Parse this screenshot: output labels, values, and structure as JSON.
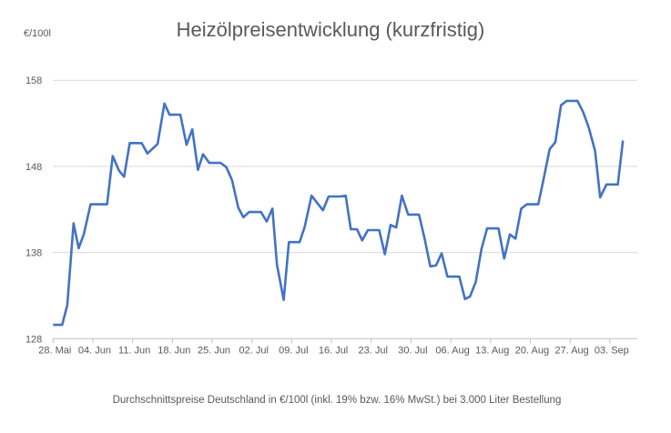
{
  "chart_data": {
    "type": "line",
    "title": "Heizölpreisentwicklung (kurzfristig)",
    "ylabel": "€/100l",
    "xlabel": "Durchschnittspreise Deutschland in €/100l (inkl. 19% bzw. 16%  MwSt.) bei 3.000 Liter Bestellung",
    "ylim": [
      128,
      158
    ],
    "yticks": [
      "128",
      "138",
      "148",
      "158"
    ],
    "ytick_values": [
      128,
      138,
      148,
      158
    ],
    "x_unit": "days since 28. Mai",
    "xlim": [
      0,
      98
    ],
    "xticks": [
      "28. Mai",
      "04. Jun",
      "11. Jun",
      "18. Jun",
      "25. Jun",
      "02. Jul",
      "09. Jul",
      "16. Jul",
      "23. Jul",
      "30. Jul",
      "06. Aug",
      "13. Aug",
      "20. Aug",
      "27. Aug",
      "03. Sep"
    ],
    "xtick_values": [
      0,
      7,
      14,
      21,
      28,
      35,
      42,
      49,
      56,
      63,
      70,
      77,
      84,
      91,
      98
    ],
    "grid": "horizontal",
    "series": [
      {
        "name": "Heizölpreis",
        "color": "#4472C4",
        "x": [
          0,
          1.6,
          2.5,
          3.6,
          4.5,
          5.4,
          6.6,
          9.5,
          10.5,
          11.6,
          12.5,
          13.5,
          15.6,
          16.6,
          18.4,
          19.6,
          20.5,
          22.4,
          23.5,
          24.5,
          25.5,
          26.4,
          27.5,
          29.5,
          30.5,
          31.5,
          32.6,
          33.5,
          34.5,
          36.6,
          37.6,
          38.6,
          39.4,
          40.6,
          41.5,
          43.4,
          44.3,
          45.5,
          47.5,
          48.5,
          50.5,
          51.5,
          52.4,
          53.5,
          54.4,
          55.4,
          57.4,
          58.4,
          59.4,
          60.4,
          61.4,
          62.5,
          64.4,
          65.4,
          66.4,
          67.4,
          68.4,
          69.4,
          71.5,
          72.5,
          73.4,
          74.4,
          75.4,
          76.4,
          78.4,
          79.4,
          80.4,
          81.4,
          82.4,
          83.4,
          85.4,
          86.3,
          87.4,
          88.4,
          89.4,
          90.4,
          92.3,
          93.3,
          94.3,
          95.4,
          96.3,
          97.4,
          99.4,
          100.3
        ],
        "values": [
          129.6,
          129.6,
          131.9,
          141.4,
          138.5,
          140.1,
          143.6,
          143.6,
          149.2,
          147.5,
          146.8,
          150.7,
          150.7,
          149.5,
          150.6,
          155.3,
          154.0,
          154.0,
          150.5,
          152.3,
          147.6,
          149.4,
          148.4,
          148.4,
          147.9,
          146.4,
          143.2,
          142.1,
          142.7,
          142.7,
          141.6,
          143.1,
          136.6,
          132.5,
          139.2,
          139.2,
          141.0,
          144.6,
          142.9,
          144.5,
          144.5,
          144.6,
          140.7,
          140.7,
          139.4,
          140.6,
          140.6,
          137.8,
          141.2,
          140.9,
          144.6,
          142.4,
          142.4,
          139.6,
          136.4,
          136.5,
          137.9,
          135.2,
          135.2,
          132.6,
          132.9,
          134.6,
          138.4,
          140.8,
          140.8,
          137.3,
          140.1,
          139.6,
          143.1,
          143.6,
          143.6,
          146.4,
          150.0,
          150.8,
          155.1,
          155.6,
          155.6,
          154.3,
          152.5,
          149.8,
          144.4,
          145.9,
          145.9,
          151.0
        ]
      }
    ]
  }
}
